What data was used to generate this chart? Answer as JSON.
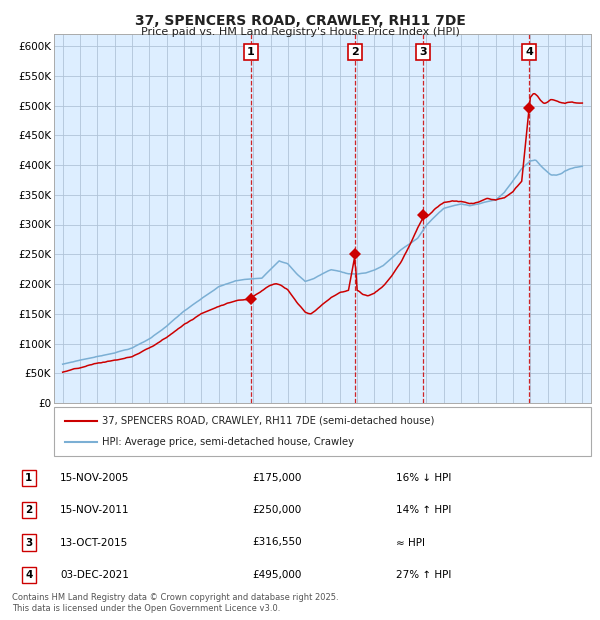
{
  "title": "37, SPENCERS ROAD, CRAWLEY, RH11 7DE",
  "subtitle": "Price paid vs. HM Land Registry's House Price Index (HPI)",
  "red_label": "37, SPENCERS ROAD, CRAWLEY, RH11 7DE (semi-detached house)",
  "blue_label": "HPI: Average price, semi-detached house, Crawley",
  "sales": [
    {
      "num": 1,
      "date": "15-NOV-2005",
      "year": 2005.87,
      "price": 175000,
      "note": "16% ↓ HPI"
    },
    {
      "num": 2,
      "date": "15-NOV-2011",
      "year": 2011.87,
      "price": 250000,
      "note": "14% ↑ HPI"
    },
    {
      "num": 3,
      "date": "13-OCT-2015",
      "year": 2015.79,
      "price": 316550,
      "note": "≈ HPI"
    },
    {
      "num": 4,
      "date": "03-DEC-2021",
      "year": 2021.92,
      "price": 495000,
      "note": "27% ↑ HPI"
    }
  ],
  "ylim": [
    0,
    620000
  ],
  "xlim_start": 1994.5,
  "xlim_end": 2025.5,
  "yticks": [
    0,
    50000,
    100000,
    150000,
    200000,
    250000,
    300000,
    350000,
    400000,
    450000,
    500000,
    550000,
    600000
  ],
  "ytick_labels": [
    "£0",
    "£50K",
    "£100K",
    "£150K",
    "£200K",
    "£250K",
    "£300K",
    "£350K",
    "£400K",
    "£450K",
    "£500K",
    "£550K",
    "£600K"
  ],
  "xticks": [
    1995,
    1996,
    1997,
    1998,
    1999,
    2000,
    2001,
    2002,
    2003,
    2004,
    2005,
    2006,
    2007,
    2008,
    2009,
    2010,
    2011,
    2012,
    2013,
    2014,
    2015,
    2016,
    2017,
    2018,
    2019,
    2020,
    2021,
    2022,
    2023,
    2024,
    2025
  ],
  "red_color": "#cc0000",
  "blue_color": "#7bafd4",
  "bg_color": "#ddeeff",
  "grid_color": "#b0c4d8",
  "vline_color": "#cc0000",
  "marker_color": "#cc0000",
  "footnote": "Contains HM Land Registry data © Crown copyright and database right 2025.\nThis data is licensed under the Open Government Licence v3.0.",
  "hpi_anchors": {
    "1995.0": 65000,
    "1996.0": 72000,
    "1997.0": 78000,
    "1998.0": 85000,
    "1999.0": 93000,
    "2000.0": 108000,
    "2001.0": 130000,
    "2002.0": 155000,
    "2003.0": 175000,
    "2004.0": 195000,
    "2004.5": 200000,
    "2005.0": 205000,
    "2005.5": 207000,
    "2006.0": 208000,
    "2006.5": 210000,
    "2007.0": 225000,
    "2007.5": 240000,
    "2008.0": 235000,
    "2008.5": 218000,
    "2009.0": 205000,
    "2009.5": 210000,
    "2010.0": 218000,
    "2010.5": 225000,
    "2011.0": 222000,
    "2011.5": 218000,
    "2012.0": 218000,
    "2012.5": 220000,
    "2013.0": 225000,
    "2013.5": 232000,
    "2014.0": 245000,
    "2014.5": 258000,
    "2015.0": 268000,
    "2015.5": 278000,
    "2016.0": 300000,
    "2016.5": 315000,
    "2017.0": 328000,
    "2017.5": 332000,
    "2018.0": 335000,
    "2018.5": 333000,
    "2019.0": 336000,
    "2019.5": 340000,
    "2020.0": 342000,
    "2020.5": 355000,
    "2021.0": 375000,
    "2021.5": 395000,
    "2022.0": 408000,
    "2022.3": 410000,
    "2022.6": 400000,
    "2022.9": 392000,
    "2023.2": 385000,
    "2023.5": 385000,
    "2023.8": 388000,
    "2024.0": 392000,
    "2024.3": 395000,
    "2024.6": 398000,
    "2025.0": 400000
  },
  "red_anchors": {
    "1995.0": 52000,
    "1996.0": 58000,
    "1997.0": 65000,
    "1998.0": 70000,
    "1999.0": 76000,
    "2000.0": 90000,
    "2001.0": 108000,
    "2002.0": 130000,
    "2003.0": 148000,
    "2004.0": 162000,
    "2004.5": 168000,
    "2005.0": 172000,
    "2005.5": 174000,
    "2005.87": 175000,
    "2006.0": 180000,
    "2006.5": 190000,
    "2007.0": 200000,
    "2007.3": 203000,
    "2007.6": 200000,
    "2008.0": 192000,
    "2008.5": 172000,
    "2009.0": 155000,
    "2009.3": 152000,
    "2009.6": 158000,
    "2010.0": 168000,
    "2010.5": 180000,
    "2011.0": 188000,
    "2011.5": 192000,
    "2011.87": 250000,
    "2012.0": 192000,
    "2012.3": 185000,
    "2012.6": 183000,
    "2013.0": 188000,
    "2013.5": 200000,
    "2014.0": 218000,
    "2014.5": 240000,
    "2015.0": 268000,
    "2015.5": 300000,
    "2015.79": 316550,
    "2016.0": 318000,
    "2016.5": 332000,
    "2017.0": 342000,
    "2017.5": 345000,
    "2018.0": 344000,
    "2018.5": 340000,
    "2019.0": 342000,
    "2019.5": 348000,
    "2020.0": 345000,
    "2020.5": 348000,
    "2021.0": 358000,
    "2021.5": 375000,
    "2021.92": 495000,
    "2022.0": 515000,
    "2022.2": 522000,
    "2022.4": 518000,
    "2022.6": 510000,
    "2022.8": 505000,
    "2023.0": 508000,
    "2023.2": 512000,
    "2023.4": 510000,
    "2023.6": 508000,
    "2023.8": 506000,
    "2024.0": 505000,
    "2024.2": 507000,
    "2024.4": 508000,
    "2024.6": 506000,
    "2024.8": 505000,
    "2025.0": 506000
  }
}
